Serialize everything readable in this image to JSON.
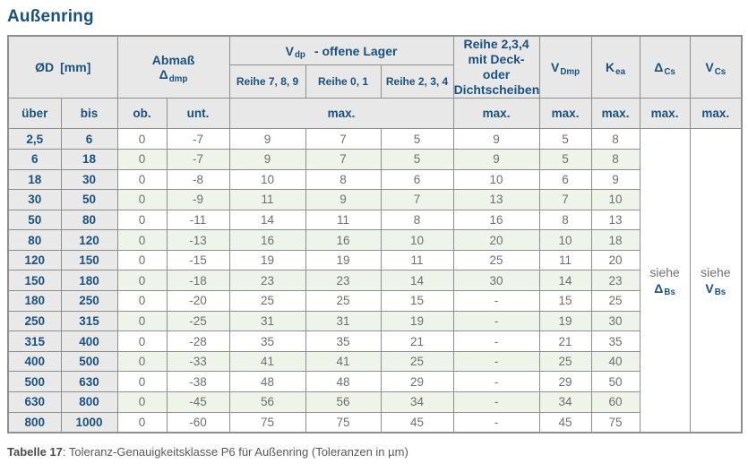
{
  "page": {
    "title": "Außenring",
    "caption": {
      "bold": "Tabelle 17",
      "rest": ": Toleranz-Genauigkeitsklasse P6 für Außenring (Toleranzen in µm)"
    }
  },
  "header": {
    "d_col": {
      "symbol": "ØD",
      "unit": "[mm]"
    },
    "abmass": {
      "line1": "Abmaß",
      "main": "Δ",
      "sub": "dmp"
    },
    "vdp_group": {
      "main": "V",
      "sub": "dp",
      "rest": "-  offene Lager"
    },
    "reihe_789": "Reihe 7, 8, 9",
    "reihe_01": "Reihe 0, 1",
    "reihe_234": "Reihe 2, 3, 4",
    "deck": {
      "line1": "Reihe 2,3,4",
      "line2": "mit Deck- oder",
      "line3": "Dichtscheiben"
    },
    "vdmp": {
      "main": "V",
      "sub": "Dmp"
    },
    "kea": {
      "main": "K",
      "sub": "ea"
    },
    "dcs": {
      "main": "Δ",
      "sub": "Cs"
    },
    "vcs": {
      "main": "V",
      "sub": "Cs"
    }
  },
  "subheader": [
    "über",
    "bis",
    "ob.",
    "unt.",
    "max.",
    "max.",
    "max.",
    "max.",
    "max.",
    "max."
  ],
  "rows": [
    [
      "2,5",
      "6",
      "0",
      "-7",
      "9",
      "7",
      "5",
      "9",
      "5",
      "8"
    ],
    [
      "6",
      "18",
      "0",
      "-7",
      "9",
      "7",
      "5",
      "9",
      "5",
      "8"
    ],
    [
      "18",
      "30",
      "0",
      "-8",
      "10",
      "8",
      "6",
      "10",
      "6",
      "9"
    ],
    [
      "30",
      "50",
      "0",
      "-9",
      "11",
      "9",
      "7",
      "13",
      "7",
      "10"
    ],
    [
      "50",
      "80",
      "0",
      "-11",
      "14",
      "11",
      "8",
      "16",
      "8",
      "13"
    ],
    [
      "80",
      "120",
      "0",
      "-13",
      "16",
      "16",
      "10",
      "20",
      "10",
      "18"
    ],
    [
      "120",
      "150",
      "0",
      "-15",
      "19",
      "19",
      "11",
      "25",
      "11",
      "20"
    ],
    [
      "150",
      "180",
      "0",
      "-18",
      "23",
      "23",
      "14",
      "30",
      "14",
      "23"
    ],
    [
      "180",
      "250",
      "0",
      "-20",
      "25",
      "25",
      "15",
      "-",
      "15",
      "25"
    ],
    [
      "250",
      "315",
      "0",
      "-25",
      "31",
      "31",
      "19",
      "-",
      "19",
      "30"
    ],
    [
      "315",
      "400",
      "0",
      "-28",
      "35",
      "35",
      "21",
      "-",
      "21",
      "35"
    ],
    [
      "400",
      "500",
      "0",
      "-33",
      "41",
      "41",
      "25",
      "-",
      "25",
      "40"
    ],
    [
      "500",
      "630",
      "0",
      "-38",
      "48",
      "48",
      "29",
      "-",
      "29",
      "50"
    ],
    [
      "630",
      "800",
      "0",
      "-45",
      "56",
      "56",
      "34",
      "-",
      "34",
      "60"
    ],
    [
      "800",
      "1000",
      "0",
      "-60",
      "75",
      "75",
      "45",
      "-",
      "45",
      "75"
    ]
  ],
  "see": {
    "dcs": {
      "text": "siehe",
      "main": "Δ",
      "sub": "Bs"
    },
    "vcs": {
      "text": "siehe",
      "main": "V",
      "sub": "Bs"
    }
  },
  "colors": {
    "accent_blue": "#1a5180",
    "row_green": "#eef4ea",
    "header_gray": "#e8e8e8",
    "border_gray": "#8f8f8f"
  }
}
